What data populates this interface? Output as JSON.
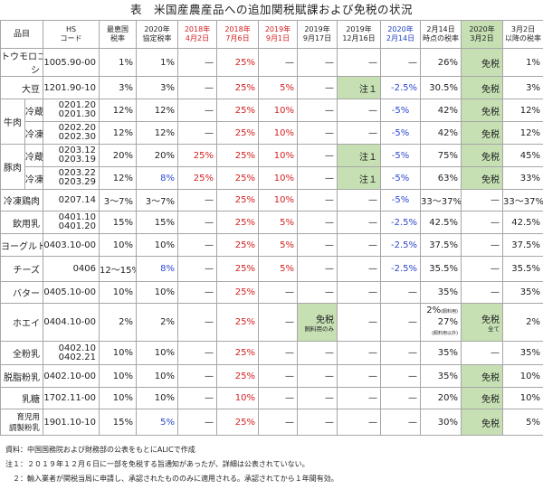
{
  "title": "表　米国産農産品への追加関税賦課および免税の状況",
  "headers": {
    "item": "品目",
    "hs": [
      "HS",
      "コード"
    ],
    "mfn": [
      "最恵国",
      "税率"
    ],
    "agreement": [
      "2020年",
      "協定税率"
    ],
    "d1": [
      "2018年",
      "4月2日"
    ],
    "d2": [
      "2018年",
      "7月6日"
    ],
    "d3": [
      "2019年",
      "9月1日"
    ],
    "d4": [
      "2019年",
      "9月17日"
    ],
    "d5": [
      "2019年",
      "12月16日"
    ],
    "d6": [
      "2020年",
      "2月14日"
    ],
    "d7": [
      "2月14日",
      "時点の税率"
    ],
    "d8": [
      "2020年",
      "3月2日"
    ],
    "d9": [
      "3月2日",
      "以降の税率"
    ]
  },
  "dash": "—",
  "rows": {
    "corn": {
      "name1": "トウモロコ",
      "name2": "シ",
      "hs": "1005.90-00",
      "mfn": "1%",
      "agr": "1%",
      "d2": "25%",
      "d7": "26%",
      "d8": "免税",
      "d9": "1%"
    },
    "soy": {
      "name": "大豆",
      "hs": "1201.90-10",
      "mfn": "3%",
      "agr": "3%",
      "d2": "25%",
      "d3": "5%",
      "d5": "注１",
      "d6": "-2.5%",
      "d7": "30.5%",
      "d8": "免税",
      "d9": "3%"
    },
    "beef_group": "牛肉",
    "beef1": {
      "sub": "冷蔵",
      "hs1": "0201.20",
      "hs2": "0201.30",
      "mfn": "12%",
      "agr": "12%",
      "d2": "25%",
      "d3": "10%",
      "d6": "-5%",
      "d7": "42%",
      "d8": "免税",
      "d9": "12%"
    },
    "beef2": {
      "sub": "冷凍",
      "hs1": "0202.20",
      "hs2": "0202.30",
      "mfn": "12%",
      "agr": "12%",
      "d2": "25%",
      "d3": "10%",
      "d6": "-5%",
      "d7": "42%",
      "d8": "免税",
      "d9": "12%"
    },
    "pork_group": "豚肉",
    "pork1": {
      "sub": "冷蔵",
      "hs1": "0203.12",
      "hs2": "0203.19",
      "mfn": "20%",
      "agr": "20%",
      "d1": "25%",
      "d2": "25%",
      "d3": "10%",
      "d5": "注１",
      "d6": "-5%",
      "d7": "75%",
      "d8": "免税",
      "d9": "45%"
    },
    "pork2": {
      "sub": "冷凍",
      "hs1": "0203.22",
      "hs2": "0203.29",
      "mfn": "12%",
      "agr": "8%",
      "d1": "25%",
      "d2": "25%",
      "d3": "10%",
      "d5": "注１",
      "d6": "-5%",
      "d7": "63%",
      "d8": "免税",
      "d9": "33%"
    },
    "chicken": {
      "name": "冷凍鶏肉",
      "hs": "0207.14",
      "mfn": "3～7%",
      "agr": "3～7%",
      "d2": "25%",
      "d3": "10%",
      "d6": "-5%",
      "d7": "33～37%",
      "d9": "33～37%"
    },
    "milk": {
      "name": "飲用乳",
      "hs1": "0401.10",
      "hs2": "0401.20",
      "mfn": "15%",
      "agr": "15%",
      "d2": "25%",
      "d3": "5%",
      "d6": "-2.5%",
      "d7": "42.5%",
      "d9": "42.5%"
    },
    "yogurt": {
      "name": "ヨーグルト",
      "hs": "0403.10-00",
      "mfn": "10%",
      "agr": "10%",
      "d2": "25%",
      "d3": "5%",
      "d6": "-2.5%",
      "d7": "37.5%",
      "d9": "37.5%"
    },
    "cheese": {
      "name": "チーズ",
      "hs": "0406",
      "mfn": "12～15%",
      "agr": "8%",
      "d2": "25%",
      "d3": "5%",
      "d6": "-2.5%",
      "d7": "35.5%",
      "d9": "35.5%"
    },
    "butter": {
      "name": "バター",
      "hs": "0405.10-00",
      "mfn": "10%",
      "agr": "10%",
      "d2": "25%",
      "d7": "35%",
      "d9": "35%"
    },
    "whey": {
      "name": "ホエイ",
      "hs": "0404.10-00",
      "mfn": "2%",
      "agr": "2%",
      "d2": "25%",
      "d4a": "免税",
      "d4b": "飼料用のみ",
      "d7a": "2%",
      "d7a_note": "(飼料用)",
      "d7b": "27%",
      "d7b_note": "(飼料用以外)",
      "d8a": "免税",
      "d8b": "全て",
      "d9": "2%"
    },
    "wholepowder": {
      "name": "全粉乳",
      "hs1": "0402.10",
      "hs2": "0402.21",
      "mfn": "10%",
      "agr": "10%",
      "d2": "25%",
      "d7": "35%",
      "d9": "35%"
    },
    "skimpowder": {
      "name": "脱脂粉乳",
      "hs": "0402.10-00",
      "mfn": "10%",
      "agr": "10%",
      "d2": "25%",
      "d7": "35%",
      "d8": "免税",
      "d9": "10%"
    },
    "lactose": {
      "name": "乳糖",
      "hs": "1702.11-00",
      "mfn": "10%",
      "agr": "10%",
      "d2": "10%",
      "d7": "20%",
      "d8": "免税",
      "d9": "10%"
    },
    "formula": {
      "name1": "育児用",
      "name2": "調製粉乳",
      "hs": "1901.10-10",
      "mfn": "15%",
      "agr": "5%",
      "d2": "25%",
      "d7": "30%",
      "d8": "免税",
      "d9": "5%"
    }
  },
  "notes": {
    "source": "資料：中国国務院および財務部の公表をもとにALICで作成",
    "note1": "注１：２０１９年１２月６日に一部を免税する旨通知があったが、詳細は公表されていない。",
    "note2": "　２：輸入業者が関税当局に申請し、承認されたもののみに適用される。承認されてから１年間有効。"
  }
}
